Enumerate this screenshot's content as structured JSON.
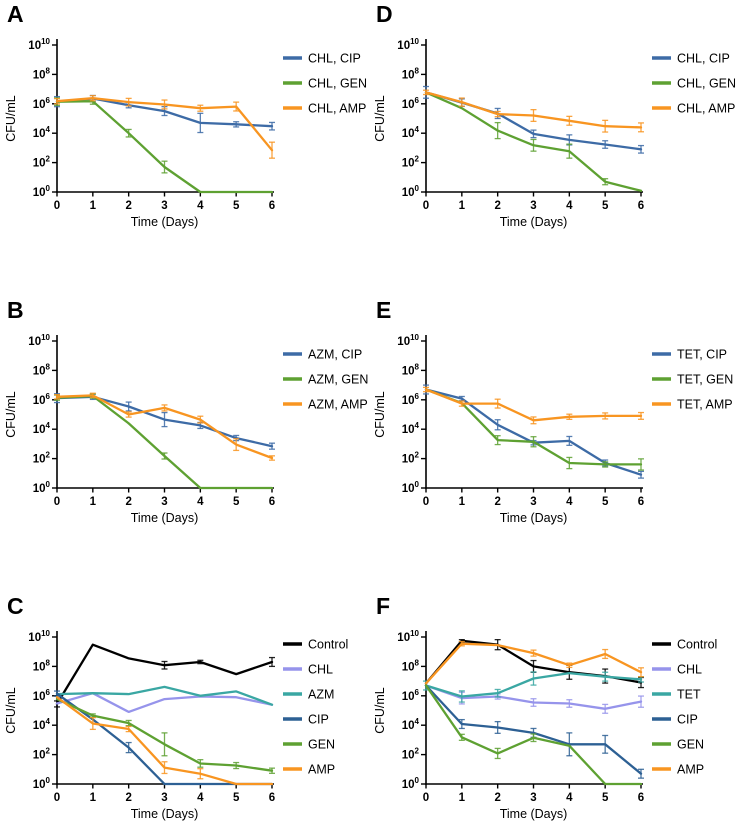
{
  "figure": {
    "xlabel": "Time (Days)",
    "ylabel": "CFU/mL",
    "x_ticks": [
      0,
      1,
      2,
      3,
      4,
      5,
      6
    ],
    "y_tick_base": "10",
    "y_tick_exponents": [
      0,
      2,
      4,
      6,
      8,
      10
    ],
    "y_scale": "log10",
    "ylim": [
      1,
      10000000000.0
    ],
    "xlim": [
      0,
      6
    ],
    "grid": "off",
    "legend_position": "right"
  },
  "palette": {
    "blue": "#3D6BA6",
    "green": "#5EA132",
    "orange": "#F89521",
    "black": "#000000",
    "periwinkle": "#9694EB",
    "teal": "#3AA7A3",
    "darkblue": "#2D6094"
  },
  "chart_data": [
    {
      "panel": "A",
      "type": "line",
      "x": [
        0,
        1,
        2,
        3,
        4,
        5,
        6
      ],
      "series": [
        {
          "name": "CHL, CIP",
          "color": "blue",
          "values": [
            1400000.0,
            2300000.0,
            800000.0,
            320000.0,
            50000.0,
            40000.0,
            30000.0
          ],
          "err": [
            2.2,
            1.6,
            1.5,
            2.0,
            4.5,
            1.5,
            1.8
          ]
        },
        {
          "name": "CHL, GEN",
          "color": "green",
          "values": [
            1400000.0,
            1500000.0,
            10000.0,
            50.0,
            1,
            1,
            1
          ],
          "err": [
            1.8,
            1.6,
            1.8,
            2.5,
            1,
            1,
            1
          ]
        },
        {
          "name": "CHL, AMP",
          "color": "orange",
          "values": [
            1500000.0,
            2400000.0,
            1300000.0,
            900000.0,
            500000.0,
            650000.0,
            700.0
          ],
          "err": [
            1.5,
            1.5,
            1.8,
            2.0,
            1.6,
            2.0,
            3.5
          ]
        }
      ]
    },
    {
      "panel": "B",
      "type": "line",
      "x": [
        0,
        1,
        2,
        3,
        4,
        5,
        6
      ],
      "series": [
        {
          "name": "AZM, CIP",
          "color": "blue",
          "values": [
            1300000.0,
            1600000.0,
            350000.0,
            45000.0,
            18000.0,
            2500.0,
            700.0
          ],
          "err": [
            2.0,
            1.5,
            2.0,
            3.0,
            1.6,
            1.5,
            1.6
          ]
        },
        {
          "name": "AZM, GEN",
          "color": "green",
          "values": [
            1400000.0,
            1800000.0,
            25000.0,
            150.0,
            1,
            1,
            1
          ],
          "err": [
            1.5,
            1.4,
            1,
            1.6,
            1,
            1,
            1
          ]
        },
        {
          "name": "AZM, AMP",
          "color": "orange",
          "values": [
            1600000.0,
            2000000.0,
            100000.0,
            280000.0,
            45000.0,
            900.0,
            110.0
          ],
          "err": [
            1.4,
            1.4,
            1.5,
            1.6,
            1.7,
            2.5,
            1.4
          ]
        }
      ]
    },
    {
      "panel": "C",
      "type": "line",
      "x": [
        0,
        1,
        2,
        3,
        4,
        5,
        6
      ],
      "series": [
        {
          "name": "Control",
          "color": "black",
          "values": [
            280000.0,
            3000000000.0,
            350000000.0,
            120000000.0,
            200000000.0,
            30000000.0,
            200000000.0
          ],
          "err": [
            1.6,
            1,
            1,
            1.8,
            1.3,
            1,
            2.0
          ]
        },
        {
          "name": "CHL",
          "color": "periwinkle",
          "values": [
            300000.0,
            1500000.0,
            80000.0,
            600000.0,
            900000.0,
            800000.0,
            250000.0
          ],
          "err": [
            1,
            1,
            1,
            1,
            1,
            1,
            1
          ]
        },
        {
          "name": "AZM",
          "color": "teal",
          "values": [
            1300000.0,
            1500000.0,
            1300000.0,
            4000000.0,
            1000000.0,
            2000000.0,
            250000.0
          ],
          "err": [
            1,
            1,
            1,
            1,
            1,
            1,
            1
          ]
        },
        {
          "name": "CIP",
          "color": "darkblue",
          "values": [
            1400000.0,
            25000.0,
            300.0,
            1,
            1,
            1,
            1
          ],
          "err": [
            1.5,
            1,
            2.2,
            1,
            1,
            1,
            1
          ]
        },
        {
          "name": "GEN",
          "color": "green",
          "values": [
            600000.0,
            45000.0,
            14000.0,
            500.0,
            25.0,
            18.0,
            8.0
          ],
          "err": [
            1,
            1.3,
            1.5,
            6.0,
            1.8,
            1.6,
            1.5
          ]
        },
        {
          "name": "AMP",
          "color": "orange",
          "values": [
            800000.0,
            13000.0,
            5500.0,
            13.0,
            5.0,
            1,
            1
          ],
          "err": [
            1,
            2.5,
            1.5,
            2.5,
            2.2,
            1,
            1
          ]
        }
      ]
    },
    {
      "panel": "D",
      "type": "line",
      "x": [
        0,
        1,
        2,
        3,
        4,
        5,
        6
      ],
      "series": [
        {
          "name": "CHL, CIP",
          "color": "blue",
          "values": [
            6000000.0,
            1200000.0,
            220000.0,
            9000.0,
            3500.0,
            1700.0,
            800.0
          ],
          "err": [
            2.5,
            1.8,
            2.2,
            1.8,
            2.2,
            1.8,
            1.8
          ]
        },
        {
          "name": "CHL, GEN",
          "color": "green",
          "values": [
            6000000.0,
            500000.0,
            15000.0,
            1500.0,
            600.0,
            5.0,
            1.2
          ],
          "err": [
            1,
            1,
            3.5,
            2.5,
            3.0,
            1.6,
            1
          ]
        },
        {
          "name": "CHL, AMP",
          "color": "orange",
          "values": [
            6000000.0,
            1300000.0,
            200000.0,
            160000.0,
            70000.0,
            30000.0,
            25000.0
          ],
          "err": [
            1.4,
            1.9,
            1.5,
            2.5,
            2.0,
            2.5,
            2.0
          ]
        }
      ]
    },
    {
      "panel": "E",
      "type": "line",
      "x": [
        0,
        1,
        2,
        3,
        4,
        5,
        6
      ],
      "series": [
        {
          "name": "TET, CIP",
          "color": "blue",
          "values": [
            5000000.0,
            1200000.0,
            20000.0,
            1200.0,
            1600.0,
            50.0,
            8.0
          ],
          "err": [
            2.0,
            1.4,
            2.2,
            1.4,
            2.0,
            1.6,
            1.7
          ]
        },
        {
          "name": "TET, GEN",
          "color": "green",
          "values": [
            5000000.0,
            600000.0,
            1800.0,
            1400.0,
            50.0,
            40.0,
            40.0
          ],
          "err": [
            1,
            1,
            2.0,
            2.2,
            2.4,
            1.5,
            2.4
          ]
        },
        {
          "name": "TET, AMP",
          "color": "orange",
          "values": [
            5000000.0,
            550000.0,
            550000.0,
            40000.0,
            70000.0,
            80000.0,
            80000.0
          ],
          "err": [
            1.4,
            1.5,
            2.0,
            1.7,
            1.5,
            1.6,
            1.7
          ]
        }
      ]
    },
    {
      "panel": "F",
      "type": "line",
      "x": [
        0,
        1,
        2,
        3,
        4,
        5,
        6
      ],
      "series": [
        {
          "name": "Control",
          "color": "black",
          "values": [
            7000000.0,
            5500000000.0,
            3000000000.0,
            100000000.0,
            40000000.0,
            22000000.0,
            8000000.0
          ],
          "err": [
            1,
            1.2,
            2.2,
            2.5,
            3.0,
            3.0,
            2.2
          ]
        },
        {
          "name": "CHL",
          "color": "periwinkle",
          "values": [
            5000000.0,
            700000.0,
            900000.0,
            350000.0,
            300000.0,
            130000.0,
            400000.0
          ],
          "err": [
            1,
            2.5,
            1.5,
            1.8,
            1.8,
            2.0,
            2.4
          ]
        },
        {
          "name": "TET",
          "color": "teal",
          "values": [
            5000000.0,
            900000.0,
            1500000.0,
            15000000.0,
            35000000.0,
            20000000.0,
            13000000.0
          ],
          "err": [
            2.0,
            2.4,
            1.8,
            2.8,
            1,
            2.0,
            1.5
          ]
        },
        {
          "name": "CIP",
          "color": "darkblue",
          "values": [
            5000000.0,
            12000.0,
            7000.0,
            3000.0,
            500.0,
            500.0,
            5.0
          ],
          "err": [
            1,
            2.0,
            2.5,
            2.0,
            6.0,
            4.0,
            2.0
          ]
        },
        {
          "name": "GEN",
          "color": "green",
          "values": [
            5000000.0,
            1500.0,
            120.0,
            1400.0,
            400.0,
            1,
            1
          ],
          "err": [
            1,
            1.6,
            2.2,
            1.8,
            1,
            1,
            1
          ]
        },
        {
          "name": "AMP",
          "color": "orange",
          "values": [
            7000000.0,
            3500000000.0,
            2800000000.0,
            800000000.0,
            120000000.0,
            700000000.0,
            40000000.0
          ],
          "err": [
            1,
            1.4,
            1,
            1.6,
            1.4,
            2.0,
            2.0
          ]
        }
      ]
    }
  ]
}
